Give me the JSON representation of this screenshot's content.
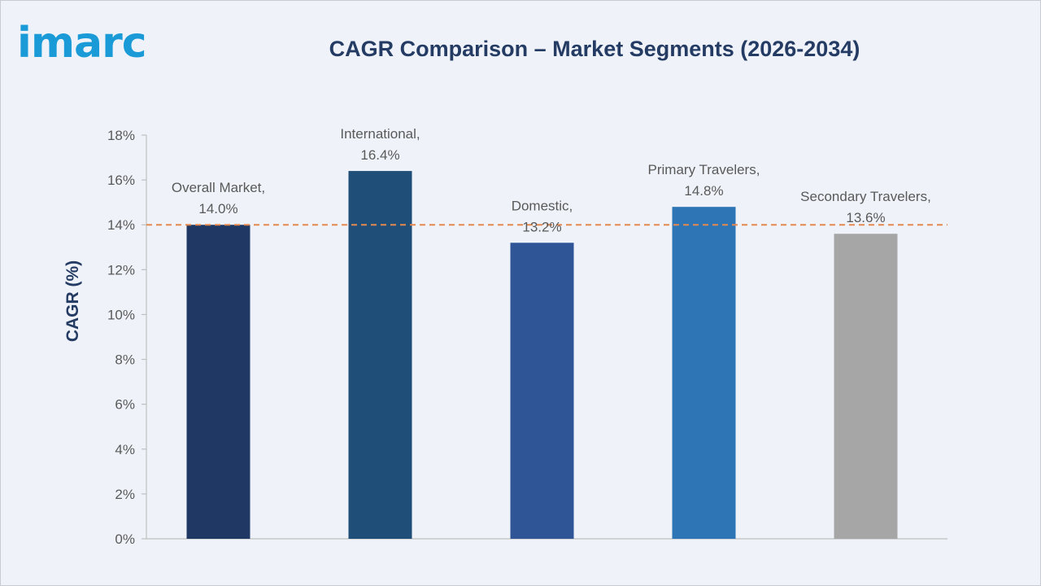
{
  "brand": {
    "logo_text": "imarc"
  },
  "chart_data": {
    "type": "bar",
    "title": "CAGR Comparison – Market Segments (2026-2034)",
    "ylabel": "CAGR (%)",
    "xlabel": "",
    "ylim": [
      0,
      18
    ],
    "y_ticks": [
      "0%",
      "2%",
      "4%",
      "6%",
      "8%",
      "10%",
      "12%",
      "14%",
      "16%",
      "18%"
    ],
    "y_tick_values": [
      0,
      2,
      4,
      6,
      8,
      10,
      12,
      14,
      16,
      18
    ],
    "categories": [
      "Overall Market",
      "International",
      "Domestic",
      "Primary Travelers",
      "Secondary Travelers"
    ],
    "values": [
      14.0,
      16.4,
      13.2,
      14.8,
      13.6
    ],
    "data_labels": [
      [
        "Overall Market,",
        "14.0%"
      ],
      [
        "International,",
        "16.4%"
      ],
      [
        "Domestic,",
        "13.2%"
      ],
      [
        "Primary Travelers,",
        "14.8%"
      ],
      [
        "Secondary Travelers,",
        "13.6%"
      ]
    ],
    "colors": [
      "#1f3864",
      "#1f4e79",
      "#2f5597",
      "#2e75b6",
      "#a6a6a6"
    ],
    "reference_line": {
      "value": 14.0,
      "color": "#e58a4e",
      "style": "dashed"
    },
    "grid": false,
    "legend": "none"
  }
}
